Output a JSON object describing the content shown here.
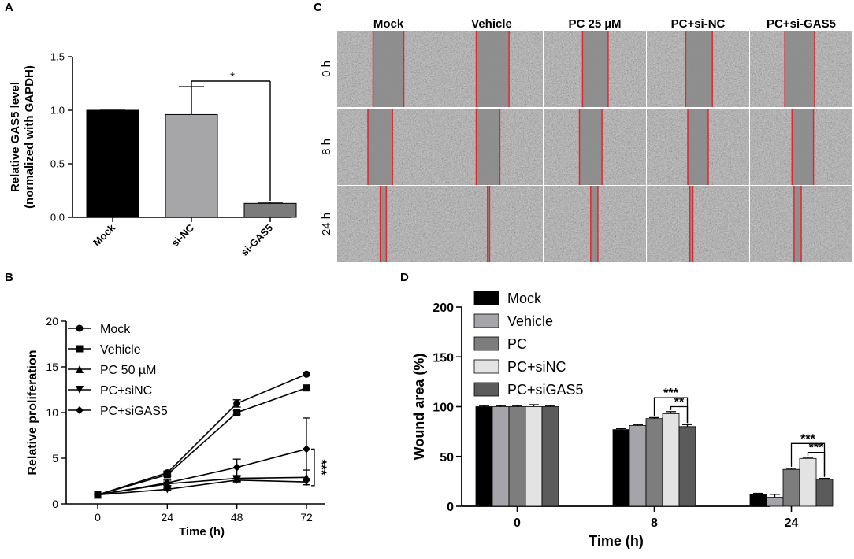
{
  "panels": {
    "a": {
      "letter": "A",
      "chart_data": {
        "type": "bar",
        "ylabel": "Relative GAS5  level",
        "ylabel2": "(normalized with GAPDH)",
        "ylim": [
          0,
          1.5
        ],
        "yticks": [
          "0.0",
          "0.5",
          "1.0",
          "1.5"
        ],
        "categories": [
          "Mock",
          "si-NC",
          "si-GAS5"
        ],
        "values": [
          1.0,
          0.96,
          0.13
        ],
        "errors": [
          0.0,
          0.26,
          0.01
        ],
        "colors": [
          "#000000",
          "#a6a6a8",
          "#7b7b7b"
        ],
        "significance": "*"
      }
    },
    "b": {
      "letter": "B",
      "chart_data": {
        "type": "line",
        "xlabel": "Time (h)",
        "ylabel": "Relative  proliferation",
        "x": [
          0,
          24,
          48,
          72
        ],
        "xticks": [
          "0",
          "24",
          "48",
          "72"
        ],
        "ylim": [
          0,
          20
        ],
        "yticks": [
          "0",
          "5",
          "10",
          "15",
          "20"
        ],
        "series": [
          {
            "name": "Mock",
            "marker": "circle",
            "values": [
              1.0,
              3.4,
              11.0,
              14.2
            ],
            "errors": [
              0,
              0.2,
              0.4,
              0.1
            ]
          },
          {
            "name": "Vehicle",
            "marker": "square",
            "values": [
              1.0,
              3.2,
              10.0,
              12.7
            ],
            "errors": [
              0,
              0.2,
              0.2,
              0.1
            ]
          },
          {
            "name": "PC 50 µM",
            "marker": "triangle-up",
            "values": [
              1.0,
              2.2,
              2.8,
              2.9
            ],
            "errors": [
              0,
              0.2,
              0.3,
              0.8
            ]
          },
          {
            "name": "PC+siNC",
            "marker": "triangle-down",
            "values": [
              1.0,
              1.6,
              2.6,
              2.4
            ],
            "errors": [
              0,
              0.1,
              0.2,
              0.3
            ]
          },
          {
            "name": "PC+siGAS5",
            "marker": "diamond",
            "values": [
              1.0,
              2.3,
              4.0,
              6.0
            ],
            "errors": [
              0,
              0.3,
              0.9,
              3.4
            ]
          }
        ],
        "significance": "***"
      }
    },
    "c": {
      "letter": "C",
      "columns": [
        "Mock",
        "Vehicle",
        "PC 25 µM",
        "PC+si-NC",
        "PC+si-GAS5"
      ],
      "rows": [
        "0 h",
        "8 h",
        "24 h"
      ]
    },
    "d": {
      "letter": "D",
      "chart_data": {
        "type": "bar",
        "xlabel": "Time (h)",
        "ylabel": "Wound area (%)",
        "categories": [
          "0",
          "8",
          "24"
        ],
        "ylim": [
          0,
          200
        ],
        "yticks": [
          "0",
          "50",
          "100",
          "150",
          "200"
        ],
        "series": [
          {
            "name": "Mock",
            "color": "#000000",
            "values": [
              100,
              77,
              12
            ],
            "errors": [
              1,
              1,
              1
            ]
          },
          {
            "name": "Vehicle",
            "color": "#a4a4aa",
            "values": [
              100,
              81,
              9
            ],
            "errors": [
              1,
              1,
              3
            ]
          },
          {
            "name": "PC",
            "color": "#7d7d7d",
            "values": [
              100,
              88,
              37
            ],
            "errors": [
              1,
              1,
              1
            ]
          },
          {
            "name": "PC+siNC",
            "color": "#e3e3e3",
            "values": [
              100,
              93,
              48
            ],
            "errors": [
              2,
              2,
              1
            ]
          },
          {
            "name": "PC+siGAS5",
            "color": "#5b5b5b",
            "values": [
              100,
              80,
              27
            ],
            "errors": [
              1,
              2,
              1
            ]
          }
        ],
        "significance_8h": [
          "***",
          "**"
        ],
        "significance_24h": [
          "***",
          "***"
        ]
      }
    }
  }
}
